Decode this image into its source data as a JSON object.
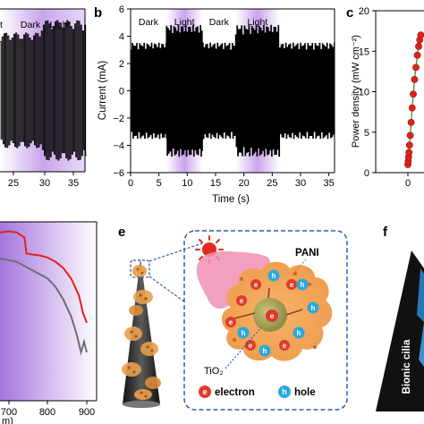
{
  "panels": {
    "a": {
      "label": "",
      "phase_labels": [
        "Dark",
        "Light"
      ],
      "x_ticks": [
        "25",
        "30",
        "35"
      ]
    },
    "b": {
      "label": "b",
      "phase_labels": [
        "Dark",
        "Light",
        "Dark",
        "Light"
      ],
      "ylabel": "Current (mA)",
      "xlabel": "Time (s)"
    },
    "c": {
      "label": "c",
      "ylabel": "Power density (mW cm⁻²)"
    },
    "d": {
      "x_ticks": [
        "700",
        "800",
        "900"
      ],
      "xlabel_fragment": "m)"
    },
    "e": {
      "label": "e",
      "pani_label": "PANI",
      "tio2_label": "TiO₂",
      "electron_label": "electron",
      "hole_label": "hole",
      "electron_symbol": "e",
      "hole_symbol": "h"
    },
    "f": {
      "label": "f",
      "cilia_label": "Bionic cilia"
    }
  },
  "colors": {
    "light_phase": "#c9a4ec",
    "red_curve": "#e0231a",
    "gray_curve": "#6e6e6e",
    "dashed_box": "#2f5fa8",
    "sun": "#e5281d",
    "pink_blob": "#f08fb4",
    "orange_particle": "#f0a45a",
    "electron": "#e03a2a",
    "hole": "#2aa8dc"
  },
  "chart_data": [
    {
      "panel": "b",
      "type": "line",
      "xlabel": "Time (s)",
      "ylabel": "Current (mA)",
      "xlim": [
        0,
        36
      ],
      "ylim": [
        -6,
        6
      ],
      "x_ticks": [
        0,
        5,
        10,
        15,
        20,
        25,
        30,
        35
      ],
      "y_ticks": [
        -6,
        -4,
        -2,
        0,
        2,
        4,
        6
      ],
      "phases": [
        {
          "label": "Dark",
          "start": 0,
          "end": 6.3,
          "amplitude": 3.5
        },
        {
          "label": "Light",
          "start": 6.3,
          "end": 12.7,
          "amplitude": 4.8
        },
        {
          "label": "Dark",
          "start": 12.7,
          "end": 18.5,
          "amplitude": 3.5
        },
        {
          "label": "Light",
          "start": 18.5,
          "end": 26.3,
          "amplitude": 4.8
        },
        {
          "label": "Dark",
          "start": 26.3,
          "end": 36,
          "amplitude": 3.5
        }
      ]
    },
    {
      "panel": "c",
      "type": "scatter",
      "ylabel": "Power density (mW cm⁻²)",
      "ylim": [
        0,
        20
      ],
      "y_ticks": [
        0,
        5,
        10,
        15,
        20
      ],
      "x_ticks": [
        0
      ],
      "x": [
        0,
        0.03,
        0.06,
        0.1,
        0.15,
        0.22,
        0.3,
        0.4,
        0.5,
        0.62,
        0.75,
        0.88,
        1.0,
        1.1,
        1.2
      ],
      "y": [
        1.0,
        1.4,
        1.9,
        2.5,
        3.4,
        4.6,
        6.2,
        8.0,
        9.7,
        11.5,
        13.0,
        14.5,
        15.6,
        16.4,
        17.0
      ]
    },
    {
      "panel": "d",
      "type": "line",
      "x_ticks": [
        700,
        800,
        900
      ],
      "xlim": [
        480,
        900
      ],
      "series": [
        {
          "x": [
            480,
            520,
            560,
            600,
            640,
            680,
            700,
            720,
            740,
            745,
            760,
            780,
            800,
            820,
            840,
            860,
            880,
            890,
            900
          ],
          "y": [
            0.86,
            0.87,
            0.88,
            0.89,
            0.895,
            0.9,
            0.905,
            0.9,
            0.875,
            0.8,
            0.795,
            0.79,
            0.78,
            0.76,
            0.73,
            0.68,
            0.6,
            0.52,
            0.47
          ]
        },
        {
          "x": [
            480,
            520,
            560,
            600,
            640,
            680,
            720,
            740,
            760,
            780,
            800,
            820,
            840,
            860,
            875,
            885,
            893,
            900
          ],
          "y": [
            0.78,
            0.77,
            0.76,
            0.76,
            0.77,
            0.775,
            0.76,
            0.74,
            0.72,
            0.7,
            0.68,
            0.64,
            0.58,
            0.5,
            0.41,
            0.33,
            0.38,
            0.33
          ]
        }
      ]
    }
  ]
}
